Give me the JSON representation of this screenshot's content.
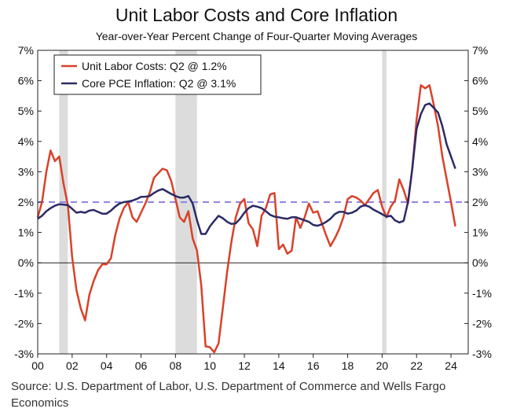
{
  "chart_data": {
    "type": "line",
    "title": "Unit Labor Costs and Core Inflation",
    "subtitle": "Year-over-Year Percent Change of Four-Quarter Moving Averages",
    "source": "Source: U.S. Department of Labor, U.S. Department of Commerce and Wells Fargo Economics",
    "xlim": [
      2000.0,
      2025.0
    ],
    "ylim": [
      -3,
      7
    ],
    "x_ticks": [
      {
        "value": 2000,
        "label": "00"
      },
      {
        "value": 2002,
        "label": "02"
      },
      {
        "value": 2004,
        "label": "04"
      },
      {
        "value": 2006,
        "label": "06"
      },
      {
        "value": 2008,
        "label": "08"
      },
      {
        "value": 2010,
        "label": "10"
      },
      {
        "value": 2012,
        "label": "12"
      },
      {
        "value": 2014,
        "label": "14"
      },
      {
        "value": 2016,
        "label": "16"
      },
      {
        "value": 2018,
        "label": "18"
      },
      {
        "value": 2020,
        "label": "20"
      },
      {
        "value": 2022,
        "label": "22"
      },
      {
        "value": 2024,
        "label": "24"
      }
    ],
    "y_ticks": [
      {
        "value": 7,
        "label": "7%"
      },
      {
        "value": 6,
        "label": "6%"
      },
      {
        "value": 5,
        "label": "5%"
      },
      {
        "value": 4,
        "label": "4%"
      },
      {
        "value": 3,
        "label": "3%"
      },
      {
        "value": 2,
        "label": "2%"
      },
      {
        "value": 1,
        "label": "1%"
      },
      {
        "value": 0,
        "label": "0%"
      },
      {
        "value": -1,
        "label": "-1%"
      },
      {
        "value": -2,
        "label": "-2%"
      },
      {
        "value": -3,
        "label": "-3%"
      }
    ],
    "recessions": [
      {
        "start": 2001.25,
        "end": 2001.75
      },
      {
        "start": 2008.0,
        "end": 2009.25
      },
      {
        "start": 2020.0,
        "end": 2020.25
      }
    ],
    "reference_line": {
      "y": 2.0,
      "color": "#8e85e6"
    },
    "legend_position": "top-left",
    "series": [
      {
        "name": "Unit Labor Costs: Q2 @ 1.2%",
        "color": "#d9412a",
        "points": [
          [
            2000.0,
            1.5
          ],
          [
            2000.25,
            2.0
          ],
          [
            2000.5,
            3.0
          ],
          [
            2000.75,
            3.7
          ],
          [
            2001.0,
            3.35
          ],
          [
            2001.25,
            3.5
          ],
          [
            2001.5,
            2.6
          ],
          [
            2001.75,
            1.9
          ],
          [
            2002.0,
            0.2
          ],
          [
            2002.25,
            -0.9
          ],
          [
            2002.5,
            -1.5
          ],
          [
            2002.75,
            -1.9
          ],
          [
            2003.0,
            -1.05
          ],
          [
            2003.25,
            -0.6
          ],
          [
            2003.5,
            -0.25
          ],
          [
            2003.75,
            -0.05
          ],
          [
            2004.0,
            -0.05
          ],
          [
            2004.25,
            0.15
          ],
          [
            2004.5,
            0.9
          ],
          [
            2004.75,
            1.45
          ],
          [
            2005.0,
            1.8
          ],
          [
            2005.25,
            2.0
          ],
          [
            2005.5,
            1.5
          ],
          [
            2005.75,
            1.35
          ],
          [
            2006.0,
            1.65
          ],
          [
            2006.25,
            1.95
          ],
          [
            2006.5,
            2.3
          ],
          [
            2006.75,
            2.8
          ],
          [
            2007.0,
            2.95
          ],
          [
            2007.25,
            3.1
          ],
          [
            2007.5,
            3.05
          ],
          [
            2007.75,
            2.7
          ],
          [
            2008.0,
            2.1
          ],
          [
            2008.25,
            1.5
          ],
          [
            2008.5,
            1.35
          ],
          [
            2008.75,
            1.7
          ],
          [
            2009.0,
            0.8
          ],
          [
            2009.25,
            0.4
          ],
          [
            2009.5,
            -0.75
          ],
          [
            2009.75,
            -2.75
          ],
          [
            2010.0,
            -2.78
          ],
          [
            2010.25,
            -2.95
          ],
          [
            2010.5,
            -2.65
          ],
          [
            2010.75,
            -1.5
          ],
          [
            2011.0,
            -0.3
          ],
          [
            2011.25,
            0.7
          ],
          [
            2011.5,
            1.5
          ],
          [
            2011.75,
            1.95
          ],
          [
            2012.0,
            2.1
          ],
          [
            2012.25,
            1.3
          ],
          [
            2012.5,
            1.1
          ],
          [
            2012.75,
            0.55
          ],
          [
            2013.0,
            1.55
          ],
          [
            2013.25,
            1.8
          ],
          [
            2013.5,
            2.25
          ],
          [
            2013.75,
            2.3
          ],
          [
            2014.0,
            0.45
          ],
          [
            2014.25,
            0.6
          ],
          [
            2014.5,
            0.3
          ],
          [
            2014.75,
            0.4
          ],
          [
            2015.0,
            1.5
          ],
          [
            2015.25,
            1.15
          ],
          [
            2015.5,
            1.5
          ],
          [
            2015.75,
            1.95
          ],
          [
            2016.0,
            1.65
          ],
          [
            2016.25,
            1.7
          ],
          [
            2016.5,
            1.3
          ],
          [
            2016.75,
            0.9
          ],
          [
            2017.0,
            0.55
          ],
          [
            2017.25,
            0.8
          ],
          [
            2017.5,
            1.1
          ],
          [
            2017.75,
            1.5
          ],
          [
            2018.0,
            2.1
          ],
          [
            2018.25,
            2.2
          ],
          [
            2018.5,
            2.15
          ],
          [
            2018.75,
            2.05
          ],
          [
            2019.0,
            1.9
          ],
          [
            2019.25,
            2.1
          ],
          [
            2019.5,
            2.3
          ],
          [
            2019.75,
            2.4
          ],
          [
            2020.0,
            1.85
          ],
          [
            2020.25,
            1.5
          ],
          [
            2020.5,
            1.85
          ],
          [
            2020.75,
            2.05
          ],
          [
            2021.0,
            2.75
          ],
          [
            2021.25,
            2.4
          ],
          [
            2021.5,
            1.95
          ],
          [
            2021.75,
            3.1
          ],
          [
            2022.0,
            4.7
          ],
          [
            2022.25,
            5.85
          ],
          [
            2022.5,
            5.75
          ],
          [
            2022.75,
            5.85
          ],
          [
            2023.0,
            5.2
          ],
          [
            2023.25,
            4.5
          ],
          [
            2023.5,
            3.5
          ],
          [
            2023.75,
            2.75
          ],
          [
            2024.0,
            2.0
          ],
          [
            2024.25,
            1.2
          ]
        ]
      },
      {
        "name": "Core PCE Inflation: Q2 @ 3.1%",
        "color": "#2b2a66",
        "points": [
          [
            2000.0,
            1.45
          ],
          [
            2000.25,
            1.55
          ],
          [
            2000.5,
            1.7
          ],
          [
            2000.75,
            1.8
          ],
          [
            2001.0,
            1.88
          ],
          [
            2001.25,
            1.93
          ],
          [
            2001.5,
            1.92
          ],
          [
            2001.75,
            1.9
          ],
          [
            2002.0,
            1.78
          ],
          [
            2002.25,
            1.65
          ],
          [
            2002.5,
            1.68
          ],
          [
            2002.75,
            1.65
          ],
          [
            2003.0,
            1.72
          ],
          [
            2003.25,
            1.74
          ],
          [
            2003.5,
            1.68
          ],
          [
            2003.75,
            1.62
          ],
          [
            2004.0,
            1.62
          ],
          [
            2004.25,
            1.72
          ],
          [
            2004.5,
            1.85
          ],
          [
            2004.75,
            1.95
          ],
          [
            2005.0,
            2.0
          ],
          [
            2005.25,
            2.02
          ],
          [
            2005.5,
            2.05
          ],
          [
            2005.75,
            2.1
          ],
          [
            2006.0,
            2.17
          ],
          [
            2006.25,
            2.18
          ],
          [
            2006.5,
            2.2
          ],
          [
            2006.75,
            2.3
          ],
          [
            2007.0,
            2.38
          ],
          [
            2007.25,
            2.43
          ],
          [
            2007.5,
            2.35
          ],
          [
            2007.75,
            2.27
          ],
          [
            2008.0,
            2.2
          ],
          [
            2008.25,
            2.15
          ],
          [
            2008.5,
            2.15
          ],
          [
            2008.75,
            2.2
          ],
          [
            2009.0,
            1.95
          ],
          [
            2009.25,
            1.4
          ],
          [
            2009.5,
            0.95
          ],
          [
            2009.75,
            0.95
          ],
          [
            2010.0,
            1.2
          ],
          [
            2010.25,
            1.38
          ],
          [
            2010.5,
            1.55
          ],
          [
            2010.75,
            1.47
          ],
          [
            2011.0,
            1.35
          ],
          [
            2011.25,
            1.28
          ],
          [
            2011.5,
            1.3
          ],
          [
            2011.75,
            1.45
          ],
          [
            2012.0,
            1.65
          ],
          [
            2012.25,
            1.8
          ],
          [
            2012.5,
            1.88
          ],
          [
            2012.75,
            1.85
          ],
          [
            2013.0,
            1.8
          ],
          [
            2013.25,
            1.7
          ],
          [
            2013.5,
            1.58
          ],
          [
            2013.75,
            1.52
          ],
          [
            2014.0,
            1.5
          ],
          [
            2014.25,
            1.47
          ],
          [
            2014.5,
            1.45
          ],
          [
            2014.75,
            1.5
          ],
          [
            2015.0,
            1.5
          ],
          [
            2015.25,
            1.45
          ],
          [
            2015.5,
            1.4
          ],
          [
            2015.75,
            1.35
          ],
          [
            2016.0,
            1.25
          ],
          [
            2016.25,
            1.22
          ],
          [
            2016.5,
            1.27
          ],
          [
            2016.75,
            1.35
          ],
          [
            2017.0,
            1.45
          ],
          [
            2017.25,
            1.6
          ],
          [
            2017.5,
            1.68
          ],
          [
            2017.75,
            1.68
          ],
          [
            2018.0,
            1.62
          ],
          [
            2018.25,
            1.65
          ],
          [
            2018.5,
            1.72
          ],
          [
            2018.75,
            1.85
          ],
          [
            2019.0,
            1.9
          ],
          [
            2019.25,
            1.85
          ],
          [
            2019.5,
            1.75
          ],
          [
            2019.75,
            1.68
          ],
          [
            2020.0,
            1.6
          ],
          [
            2020.25,
            1.52
          ],
          [
            2020.5,
            1.55
          ],
          [
            2020.75,
            1.4
          ],
          [
            2021.0,
            1.33
          ],
          [
            2021.25,
            1.38
          ],
          [
            2021.5,
            2.0
          ],
          [
            2021.75,
            3.1
          ],
          [
            2022.0,
            4.4
          ],
          [
            2022.25,
            4.9
          ],
          [
            2022.5,
            5.2
          ],
          [
            2022.75,
            5.25
          ],
          [
            2023.0,
            5.1
          ],
          [
            2023.25,
            4.95
          ],
          [
            2023.5,
            4.5
          ],
          [
            2023.75,
            3.9
          ],
          [
            2024.0,
            3.5
          ],
          [
            2024.25,
            3.1
          ]
        ]
      }
    ]
  }
}
